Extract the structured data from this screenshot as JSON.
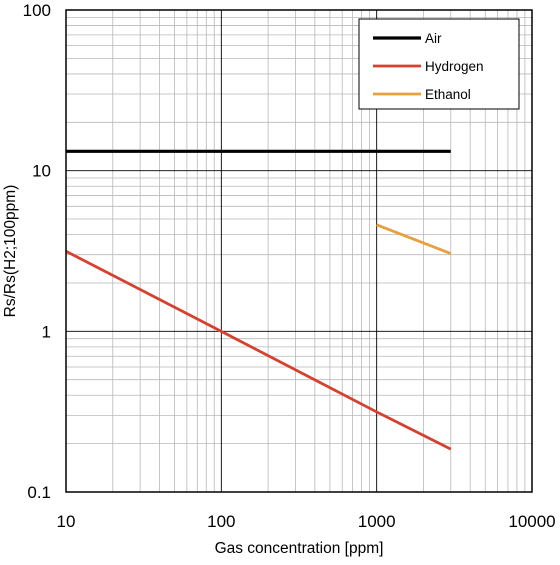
{
  "chart_data": {
    "type": "line",
    "xlabel": "Gas concentration [ppm]",
    "ylabel": "Rs/Rs(H2;100ppm)",
    "x_scale": "log",
    "y_scale": "log",
    "xlim": [
      10,
      10000
    ],
    "ylim": [
      0.1,
      100
    ],
    "x_ticks": [
      {
        "value": 10,
        "label": "10"
      },
      {
        "value": 100,
        "label": "100"
      },
      {
        "value": 1000,
        "label": "1000"
      },
      {
        "value": 10000,
        "label": "10000"
      }
    ],
    "y_ticks": [
      {
        "value": 0.1,
        "label": "0.1"
      },
      {
        "value": 1,
        "label": "1"
      },
      {
        "value": 10,
        "label": "10"
      },
      {
        "value": 100,
        "label": "100"
      }
    ],
    "grid": true,
    "legend_position": "top-right",
    "series": [
      {
        "name": "Air",
        "color": "#000000",
        "points": [
          [
            10,
            13.2
          ],
          [
            3000,
            13.2
          ]
        ]
      },
      {
        "name": "Hydrogen",
        "color": "#d6412f",
        "points": [
          [
            10,
            3.15
          ],
          [
            100,
            1.0
          ],
          [
            1000,
            0.315
          ],
          [
            3000,
            0.185
          ]
        ]
      },
      {
        "name": "Ethanol",
        "color": "#e8a03d",
        "points": [
          [
            1000,
            4.6
          ],
          [
            3000,
            3.05
          ]
        ]
      }
    ]
  }
}
